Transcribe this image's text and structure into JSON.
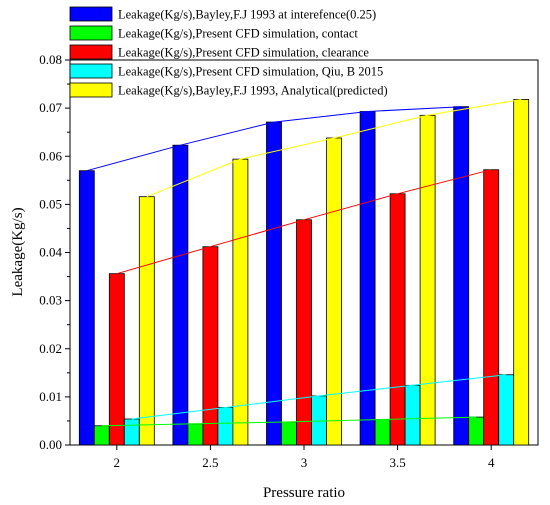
{
  "chart_data": {
    "type": "bar",
    "xlabel": "Pressure ratio",
    "ylabel": "Leakage(Kg/s)",
    "ylim": [
      0.0,
      0.08
    ],
    "yticks": [
      "0.00",
      "0.01",
      "0.02",
      "0.03",
      "0.04",
      "0.05",
      "0.06",
      "0.07",
      "0.08"
    ],
    "categories": [
      "2",
      "2.5",
      "3",
      "3.5",
      "4"
    ],
    "legend_position": "top-left",
    "series": [
      {
        "name": "Leakage(Kg/s),Bayley,F.J 1993 at interefence(0.25)",
        "color": "#0000ff",
        "values": [
          0.057,
          0.0623,
          0.0671,
          0.0693,
          0.0703
        ]
      },
      {
        "name": "Leakage(Kg/s),Present CFD simulation, contact",
        "color": "#00ff00",
        "values": [
          0.004,
          0.0044,
          0.0048,
          0.0053,
          0.0058
        ]
      },
      {
        "name": "Leakage(Kg/s),Present CFD simulation, clearance",
        "color": "#ff0000",
        "values": [
          0.0356,
          0.0412,
          0.0468,
          0.0522,
          0.0572
        ]
      },
      {
        "name": "Leakage(Kg/s),Present CFD simulation, Qiu, B 2015",
        "color": "#00ffff",
        "values": [
          0.0054,
          0.0078,
          0.0102,
          0.0124,
          0.0146
        ]
      },
      {
        "name": "Leakage(Kg/s),Bayley,F.J 1993, Analytical(predicted)",
        "color": "#ffff00",
        "values": [
          0.0516,
          0.0594,
          0.0638,
          0.0685,
          0.0718
        ]
      }
    ]
  }
}
